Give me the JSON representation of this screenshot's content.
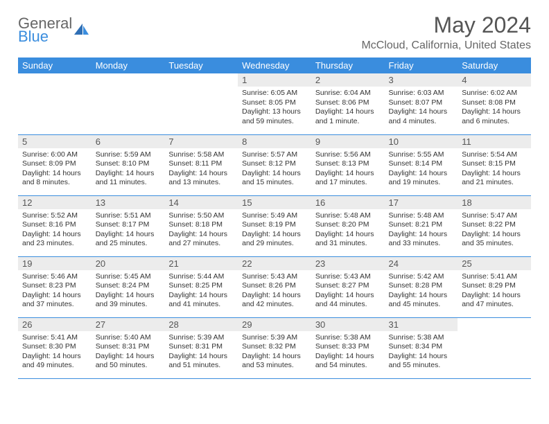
{
  "brand": {
    "line1": "General",
    "line2": "Blue",
    "accent": "#3a8dde",
    "text_color": "#666"
  },
  "title": "May 2024",
  "location": "McCloud, California, United States",
  "day_headers": [
    "Sunday",
    "Monday",
    "Tuesday",
    "Wednesday",
    "Thursday",
    "Friday",
    "Saturday"
  ],
  "weeks": [
    [
      null,
      null,
      null,
      {
        "n": "1",
        "sr": "6:05 AM",
        "ss": "8:05 PM",
        "dl": "13 hours and 59 minutes."
      },
      {
        "n": "2",
        "sr": "6:04 AM",
        "ss": "8:06 PM",
        "dl": "14 hours and 1 minute."
      },
      {
        "n": "3",
        "sr": "6:03 AM",
        "ss": "8:07 PM",
        "dl": "14 hours and 4 minutes."
      },
      {
        "n": "4",
        "sr": "6:02 AM",
        "ss": "8:08 PM",
        "dl": "14 hours and 6 minutes."
      }
    ],
    [
      {
        "n": "5",
        "sr": "6:00 AM",
        "ss": "8:09 PM",
        "dl": "14 hours and 8 minutes."
      },
      {
        "n": "6",
        "sr": "5:59 AM",
        "ss": "8:10 PM",
        "dl": "14 hours and 11 minutes."
      },
      {
        "n": "7",
        "sr": "5:58 AM",
        "ss": "8:11 PM",
        "dl": "14 hours and 13 minutes."
      },
      {
        "n": "8",
        "sr": "5:57 AM",
        "ss": "8:12 PM",
        "dl": "14 hours and 15 minutes."
      },
      {
        "n": "9",
        "sr": "5:56 AM",
        "ss": "8:13 PM",
        "dl": "14 hours and 17 minutes."
      },
      {
        "n": "10",
        "sr": "5:55 AM",
        "ss": "8:14 PM",
        "dl": "14 hours and 19 minutes."
      },
      {
        "n": "11",
        "sr": "5:54 AM",
        "ss": "8:15 PM",
        "dl": "14 hours and 21 minutes."
      }
    ],
    [
      {
        "n": "12",
        "sr": "5:52 AM",
        "ss": "8:16 PM",
        "dl": "14 hours and 23 minutes."
      },
      {
        "n": "13",
        "sr": "5:51 AM",
        "ss": "8:17 PM",
        "dl": "14 hours and 25 minutes."
      },
      {
        "n": "14",
        "sr": "5:50 AM",
        "ss": "8:18 PM",
        "dl": "14 hours and 27 minutes."
      },
      {
        "n": "15",
        "sr": "5:49 AM",
        "ss": "8:19 PM",
        "dl": "14 hours and 29 minutes."
      },
      {
        "n": "16",
        "sr": "5:48 AM",
        "ss": "8:20 PM",
        "dl": "14 hours and 31 minutes."
      },
      {
        "n": "17",
        "sr": "5:48 AM",
        "ss": "8:21 PM",
        "dl": "14 hours and 33 minutes."
      },
      {
        "n": "18",
        "sr": "5:47 AM",
        "ss": "8:22 PM",
        "dl": "14 hours and 35 minutes."
      }
    ],
    [
      {
        "n": "19",
        "sr": "5:46 AM",
        "ss": "8:23 PM",
        "dl": "14 hours and 37 minutes."
      },
      {
        "n": "20",
        "sr": "5:45 AM",
        "ss": "8:24 PM",
        "dl": "14 hours and 39 minutes."
      },
      {
        "n": "21",
        "sr": "5:44 AM",
        "ss": "8:25 PM",
        "dl": "14 hours and 41 minutes."
      },
      {
        "n": "22",
        "sr": "5:43 AM",
        "ss": "8:26 PM",
        "dl": "14 hours and 42 minutes."
      },
      {
        "n": "23",
        "sr": "5:43 AM",
        "ss": "8:27 PM",
        "dl": "14 hours and 44 minutes."
      },
      {
        "n": "24",
        "sr": "5:42 AM",
        "ss": "8:28 PM",
        "dl": "14 hours and 45 minutes."
      },
      {
        "n": "25",
        "sr": "5:41 AM",
        "ss": "8:29 PM",
        "dl": "14 hours and 47 minutes."
      }
    ],
    [
      {
        "n": "26",
        "sr": "5:41 AM",
        "ss": "8:30 PM",
        "dl": "14 hours and 49 minutes."
      },
      {
        "n": "27",
        "sr": "5:40 AM",
        "ss": "8:31 PM",
        "dl": "14 hours and 50 minutes."
      },
      {
        "n": "28",
        "sr": "5:39 AM",
        "ss": "8:31 PM",
        "dl": "14 hours and 51 minutes."
      },
      {
        "n": "29",
        "sr": "5:39 AM",
        "ss": "8:32 PM",
        "dl": "14 hours and 53 minutes."
      },
      {
        "n": "30",
        "sr": "5:38 AM",
        "ss": "8:33 PM",
        "dl": "14 hours and 54 minutes."
      },
      {
        "n": "31",
        "sr": "5:38 AM",
        "ss": "8:34 PM",
        "dl": "14 hours and 55 minutes."
      },
      null
    ]
  ],
  "labels": {
    "sunrise": "Sunrise:",
    "sunset": "Sunset:",
    "daylight": "Daylight:"
  },
  "style": {
    "header_bg": "#3a8dde",
    "header_fg": "#ffffff",
    "daynum_bg": "#ececec",
    "border_color": "#3a8dde",
    "body_font_size": 10.5,
    "header_font_size": 13,
    "title_font_size": 32,
    "location_font_size": 16
  }
}
